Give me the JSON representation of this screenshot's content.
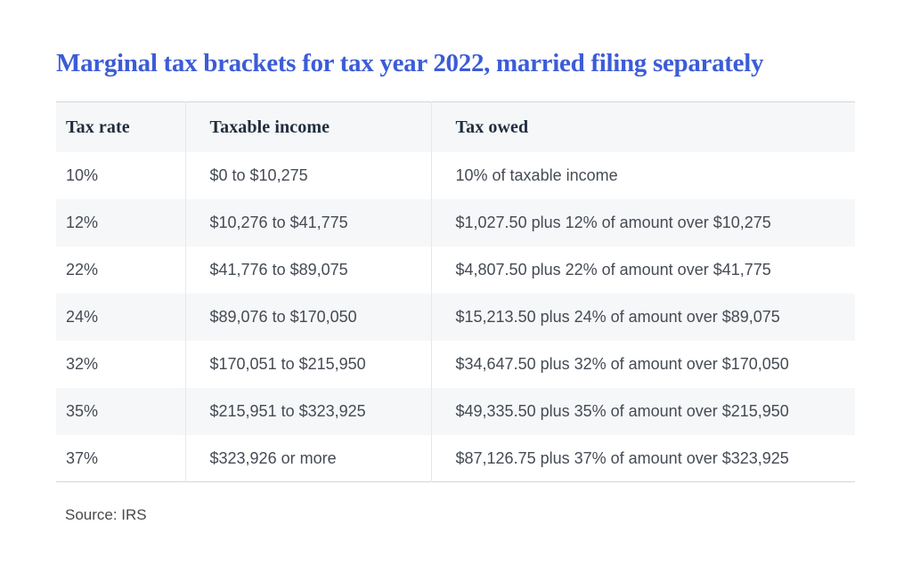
{
  "chart_data": {
    "type": "table",
    "title": "Marginal tax brackets for tax year 2022, married filing separately",
    "columns": [
      "Tax rate",
      "Taxable income",
      "Tax owed"
    ],
    "rows": [
      [
        "10%",
        "$0 to $10,275",
        "10% of taxable income"
      ],
      [
        "12%",
        "$10,276 to $41,775",
        "$1,027.50 plus 12% of amount over $10,275"
      ],
      [
        "22%",
        "$41,776 to $89,075",
        "$4,807.50 plus 22% of amount over $41,775"
      ],
      [
        "24%",
        "$89,076 to $170,050",
        "$15,213.50 plus 24% of amount over $89,075"
      ],
      [
        "32%",
        "$170,051 to $215,950",
        "$34,647.50 plus 32% of amount over $170,050"
      ],
      [
        "35%",
        "$215,951 to $323,925",
        "$49,335.50 plus 35% of amount over $215,950"
      ],
      [
        "37%",
        "$323,926 or more",
        "$87,126.75 plus 37% of amount over $323,925"
      ]
    ],
    "source": "Source: IRS",
    "layout": {
      "legend": "none",
      "grid": "row-stripes"
    },
    "colors": {
      "title_blue": "#3C5CD7",
      "header_text": "#1F2D3D",
      "body_text": "#454B54",
      "stripe_bg": "#F6F7F8",
      "border": "#D5D6D9",
      "divider": "#E7E8EA",
      "page_bg": "#FFFFFF"
    }
  }
}
